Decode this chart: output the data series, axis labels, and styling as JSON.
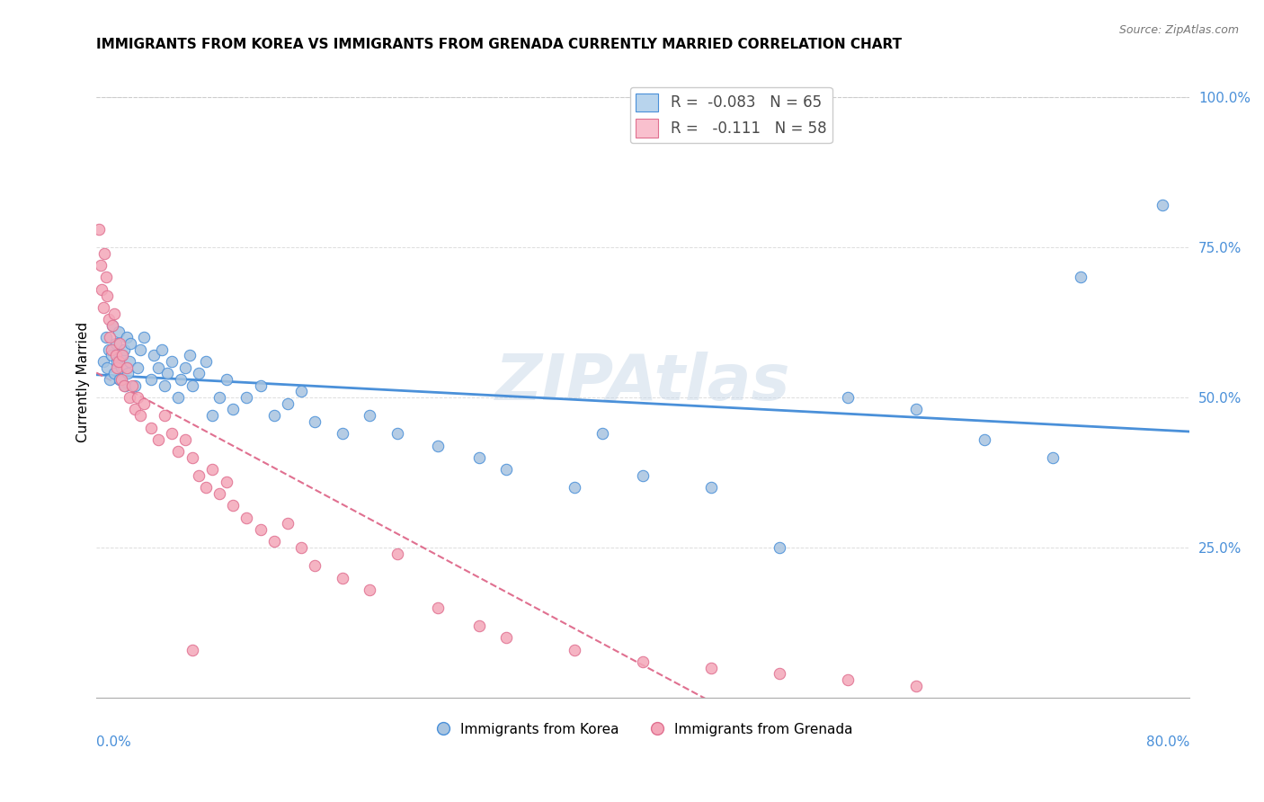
{
  "title": "IMMIGRANTS FROM KOREA VS IMMIGRANTS FROM GRENADA CURRENTLY MARRIED CORRELATION CHART",
  "source": "Source: ZipAtlas.com",
  "ylabel": "Currently Married",
  "xlim": [
    0.0,
    0.8
  ],
  "ylim": [
    0.0,
    1.05
  ],
  "korea_R": -0.083,
  "korea_N": 65,
  "grenada_R": -0.111,
  "grenada_N": 58,
  "korea_color": "#a8c4e0",
  "grenada_color": "#f4a7b9",
  "korea_line_color": "#4a90d9",
  "grenada_line_color": "#e07090",
  "legend_korea_face": "#b8d4ed",
  "legend_grenada_face": "#f9c0ce",
  "watermark": "ZIPAtlas",
  "watermark_color": "#c8d8e8",
  "korea_x": [
    0.005,
    0.007,
    0.008,
    0.009,
    0.01,
    0.011,
    0.012,
    0.013,
    0.014,
    0.015,
    0.016,
    0.017,
    0.018,
    0.019,
    0.02,
    0.021,
    0.022,
    0.023,
    0.024,
    0.025,
    0.028,
    0.03,
    0.032,
    0.035,
    0.04,
    0.042,
    0.045,
    0.048,
    0.05,
    0.052,
    0.055,
    0.06,
    0.062,
    0.065,
    0.068,
    0.07,
    0.075,
    0.08,
    0.085,
    0.09,
    0.095,
    0.1,
    0.11,
    0.12,
    0.13,
    0.14,
    0.15,
    0.16,
    0.18,
    0.2,
    0.22,
    0.25,
    0.28,
    0.3,
    0.35,
    0.37,
    0.4,
    0.45,
    0.5,
    0.55,
    0.6,
    0.65,
    0.7,
    0.72,
    0.78
  ],
  "korea_y": [
    0.56,
    0.6,
    0.55,
    0.58,
    0.53,
    0.57,
    0.62,
    0.54,
    0.59,
    0.56,
    0.61,
    0.53,
    0.55,
    0.57,
    0.58,
    0.52,
    0.6,
    0.54,
    0.56,
    0.59,
    0.52,
    0.55,
    0.58,
    0.6,
    0.53,
    0.57,
    0.55,
    0.58,
    0.52,
    0.54,
    0.56,
    0.5,
    0.53,
    0.55,
    0.57,
    0.52,
    0.54,
    0.56,
    0.47,
    0.5,
    0.53,
    0.48,
    0.5,
    0.52,
    0.47,
    0.49,
    0.51,
    0.46,
    0.44,
    0.47,
    0.44,
    0.42,
    0.4,
    0.38,
    0.35,
    0.44,
    0.37,
    0.35,
    0.25,
    0.5,
    0.48,
    0.43,
    0.4,
    0.7,
    0.82
  ],
  "grenada_x": [
    0.002,
    0.003,
    0.004,
    0.005,
    0.006,
    0.007,
    0.008,
    0.009,
    0.01,
    0.011,
    0.012,
    0.013,
    0.014,
    0.015,
    0.016,
    0.017,
    0.018,
    0.019,
    0.02,
    0.022,
    0.024,
    0.026,
    0.028,
    0.03,
    0.032,
    0.035,
    0.04,
    0.045,
    0.05,
    0.055,
    0.06,
    0.065,
    0.07,
    0.075,
    0.08,
    0.085,
    0.09,
    0.095,
    0.1,
    0.11,
    0.12,
    0.13,
    0.14,
    0.15,
    0.16,
    0.18,
    0.2,
    0.22,
    0.25,
    0.28,
    0.3,
    0.35,
    0.4,
    0.45,
    0.5,
    0.55,
    0.6,
    0.07
  ],
  "grenada_y": [
    0.78,
    0.72,
    0.68,
    0.65,
    0.74,
    0.7,
    0.67,
    0.63,
    0.6,
    0.58,
    0.62,
    0.64,
    0.57,
    0.55,
    0.56,
    0.59,
    0.53,
    0.57,
    0.52,
    0.55,
    0.5,
    0.52,
    0.48,
    0.5,
    0.47,
    0.49,
    0.45,
    0.43,
    0.47,
    0.44,
    0.41,
    0.43,
    0.4,
    0.37,
    0.35,
    0.38,
    0.34,
    0.36,
    0.32,
    0.3,
    0.28,
    0.26,
    0.29,
    0.25,
    0.22,
    0.2,
    0.18,
    0.24,
    0.15,
    0.12,
    0.1,
    0.08,
    0.06,
    0.05,
    0.04,
    0.03,
    0.02,
    0.08
  ]
}
